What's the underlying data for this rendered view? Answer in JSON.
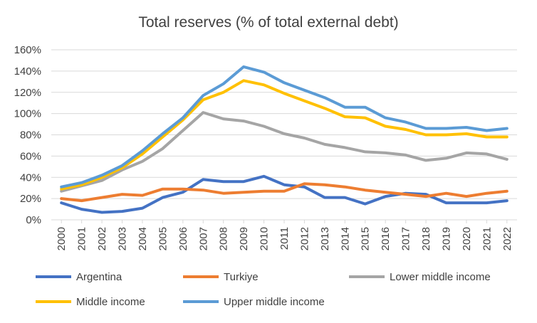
{
  "chart_data": {
    "type": "line",
    "title": "Total reserves (% of total external debt)",
    "xlabel": "",
    "ylabel": "",
    "ylim": [
      0,
      160
    ],
    "yticks": [
      0,
      20,
      40,
      60,
      80,
      100,
      120,
      140,
      160
    ],
    "ytick_suffix": "%",
    "grid": true,
    "legend_position": "bottom",
    "x": [
      "2000",
      "2001",
      "2002",
      "2003",
      "2004",
      "2005",
      "2006",
      "2007",
      "2008",
      "2009",
      "2010",
      "2011",
      "2012",
      "2013",
      "2014",
      "2015",
      "2016",
      "2017",
      "2018",
      "2019",
      "2020",
      "2021",
      "2022"
    ],
    "series": [
      {
        "name": "Argentina",
        "color": "#4472c4",
        "values": [
          16,
          10,
          7,
          8,
          11,
          21,
          26,
          38,
          36,
          36,
          41,
          33,
          31,
          21,
          21,
          15,
          22,
          25,
          24,
          16,
          16,
          16,
          18
        ]
      },
      {
        "name": "Turkiye",
        "color": "#ed7d31",
        "values": [
          20,
          18,
          21,
          24,
          23,
          29,
          29,
          28,
          25,
          26,
          27,
          27,
          34,
          33,
          31,
          28,
          26,
          24,
          22,
          25,
          22,
          25,
          27
        ]
      },
      {
        "name": "Lower middle income",
        "color": "#a5a5a5",
        "values": [
          27,
          32,
          37,
          47,
          55,
          67,
          84,
          101,
          95,
          93,
          88,
          81,
          77,
          71,
          68,
          64,
          63,
          61,
          56,
          58,
          63,
          62,
          57
        ]
      },
      {
        "name": "Middle income",
        "color": "#ffc000",
        "values": [
          29,
          33,
          40,
          49,
          62,
          78,
          94,
          113,
          120,
          131,
          127,
          119,
          112,
          105,
          97,
          96,
          88,
          85,
          80,
          80,
          81,
          78,
          78
        ]
      },
      {
        "name": "Upper middle income",
        "color": "#5b9bd5",
        "values": [
          31,
          35,
          42,
          51,
          65,
          81,
          96,
          117,
          128,
          144,
          139,
          129,
          122,
          115,
          106,
          106,
          96,
          92,
          86,
          86,
          87,
          84,
          86
        ]
      }
    ]
  }
}
